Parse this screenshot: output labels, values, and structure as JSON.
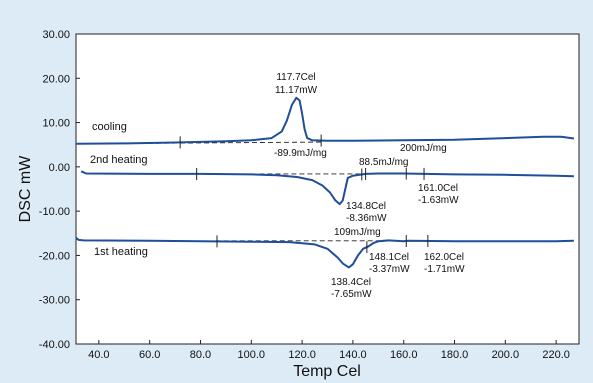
{
  "chart_data": {
    "type": "line",
    "xlabel": "Temp Cel",
    "ylabel": "DSC mW",
    "xlim": [
      31,
      229
    ],
    "ylim": [
      -40,
      30
    ],
    "x_ticks": [
      "40.0",
      "60.0",
      "80.0",
      "100.0",
      "120.0",
      "140.0",
      "160.0",
      "180.0",
      "200.0",
      "220.0"
    ],
    "y_ticks": [
      "30.00",
      "20.00",
      "10.00",
      "0.00",
      "-10.00",
      "-20.00",
      "-30.00",
      "-40.00"
    ],
    "grid": false,
    "line_color": "#1f4e9a",
    "series": [
      {
        "name": "cooling",
        "points": [
          [
            31,
            5.2
          ],
          [
            50,
            5.3
          ],
          [
            70,
            5.5
          ],
          [
            90,
            5.8
          ],
          [
            100,
            6.0
          ],
          [
            108,
            6.5
          ],
          [
            112,
            8.0
          ],
          [
            114,
            10.5
          ],
          [
            116,
            14.0
          ],
          [
            117.7,
            15.6
          ],
          [
            119,
            15.0
          ],
          [
            120,
            12.0
          ],
          [
            121,
            8.5
          ],
          [
            122,
            6.5
          ],
          [
            124,
            6.0
          ],
          [
            130,
            5.9
          ],
          [
            140,
            5.9
          ],
          [
            160,
            6.0
          ],
          [
            180,
            6.1
          ],
          [
            200,
            6.5
          ],
          [
            215,
            6.8
          ],
          [
            222,
            6.8
          ],
          [
            227,
            6.4
          ]
        ],
        "baseline": [
          [
            31,
            5.2
          ],
          [
            128,
            5.6
          ]
        ],
        "ticks_x": [
          72,
          127.5
        ]
      },
      {
        "name": "2nd heating",
        "points": [
          [
            33,
            -1.0
          ],
          [
            35,
            -1.5
          ],
          [
            60,
            -1.6
          ],
          [
            80,
            -1.6
          ],
          [
            100,
            -1.7
          ],
          [
            110,
            -1.9
          ],
          [
            118,
            -2.3
          ],
          [
            124,
            -3.0
          ],
          [
            128,
            -4.2
          ],
          [
            131,
            -5.8
          ],
          [
            133,
            -7.5
          ],
          [
            134.8,
            -8.4
          ],
          [
            136,
            -7.6
          ],
          [
            137,
            -5.0
          ],
          [
            138,
            -2.5
          ],
          [
            140,
            -2.0
          ],
          [
            145,
            -1.6
          ],
          [
            150,
            -1.5
          ],
          [
            160,
            -1.5
          ],
          [
            180,
            -1.7
          ],
          [
            200,
            -1.8
          ],
          [
            220,
            -2.0
          ],
          [
            227,
            -2.1
          ]
        ],
        "baseline": [
          [
            78,
            -1.6
          ],
          [
            161,
            -1.6
          ]
        ],
        "ticks_x": [
          78.5,
          143.5,
          145,
          161,
          168
        ]
      },
      {
        "name": "1st heating",
        "points": [
          [
            31,
            -16.0
          ],
          [
            32,
            -16.5
          ],
          [
            34,
            -16.6
          ],
          [
            60,
            -16.7
          ],
          [
            80,
            -16.8
          ],
          [
            100,
            -16.9
          ],
          [
            115,
            -17.0
          ],
          [
            125,
            -17.5
          ],
          [
            130,
            -18.5
          ],
          [
            134,
            -20.5
          ],
          [
            136,
            -21.8
          ],
          [
            138.4,
            -22.7
          ],
          [
            140,
            -22.0
          ],
          [
            142,
            -20.0
          ],
          [
            144,
            -18.5
          ],
          [
            146,
            -18.0
          ],
          [
            148.1,
            -17.2
          ],
          [
            150,
            -16.8
          ],
          [
            154,
            -16.6
          ],
          [
            160,
            -16.8
          ],
          [
            162,
            -16.7
          ],
          [
            180,
            -16.8
          ],
          [
            200,
            -16.8
          ],
          [
            220,
            -16.8
          ],
          [
            227,
            -16.7
          ]
        ],
        "baseline": [
          [
            86,
            -16.7
          ],
          [
            162,
            -16.7
          ]
        ],
        "ticks_x": [
          86.5,
          145.5,
          161,
          169.5
        ]
      }
    ],
    "annotations": {
      "cooling_label": "cooling",
      "heat2_label": "2nd heating",
      "heat1_label": "1st heating",
      "cool_peak_temp": "117.7Cel",
      "cool_peak_val": "11.17mW",
      "cool_enthalpy": "-89.9mJ/mg",
      "cool_enthalpy2": "200mJ/mg",
      "h2_enthalpy": "88.5mJ/mg",
      "h2_peak1_temp": "134.8Cel",
      "h2_peak1_val": "-8.36mW",
      "h2_peak2_temp": "161.0Cel",
      "h2_peak2_val": "-1.63mW",
      "h1_enthalpy": "109mJ/mg",
      "h1_peak1_temp": "138.4Cel",
      "h1_peak1_val": "-7.65mW",
      "h1_peak2_temp": "148.1Cel",
      "h1_peak2_val": "-3.37mW",
      "h1_peak3_temp": "162.0Cel",
      "h1_peak3_val": "-1.71mW"
    }
  }
}
